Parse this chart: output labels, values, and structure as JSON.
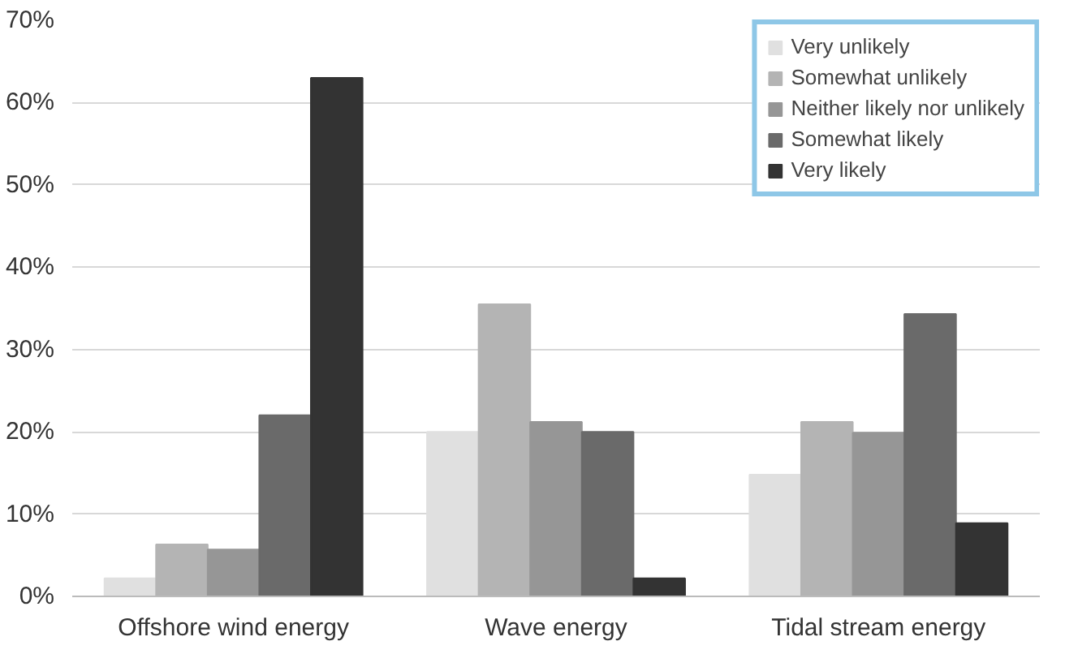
{
  "chart_data": {
    "type": "bar",
    "categories": [
      "Offshore wind energy",
      "Wave energy",
      "Tidal stream energy"
    ],
    "series": [
      {
        "name": "Very unlikely",
        "color": "#e0e0e0",
        "values": [
          2.2,
          20.0,
          14.8
        ]
      },
      {
        "name": "Somewhat unlikely",
        "color": "#b4b4b4",
        "values": [
          6.3,
          35.5,
          21.2
        ]
      },
      {
        "name": "Neither likely nor unlikely",
        "color": "#969696",
        "values": [
          5.7,
          21.2,
          19.9
        ]
      },
      {
        "name": "Somewhat likely",
        "color": "#6a6a6a",
        "values": [
          22.0,
          20.0,
          34.3
        ]
      },
      {
        "name": "Very likely",
        "color": "#333333",
        "values": [
          63.0,
          2.2,
          8.9
        ]
      }
    ],
    "ylim": [
      0,
      70
    ],
    "yticks": [
      {
        "value": 0,
        "label": "0%"
      },
      {
        "value": 10,
        "label": "10%"
      },
      {
        "value": 20,
        "label": "20%"
      },
      {
        "value": 30,
        "label": "30%"
      },
      {
        "value": 40,
        "label": "40%"
      },
      {
        "value": 50,
        "label": "50%"
      },
      {
        "value": 60,
        "label": "60%"
      },
      {
        "value": 70,
        "label": "70%"
      }
    ],
    "grid": "y",
    "legend": "top right"
  }
}
